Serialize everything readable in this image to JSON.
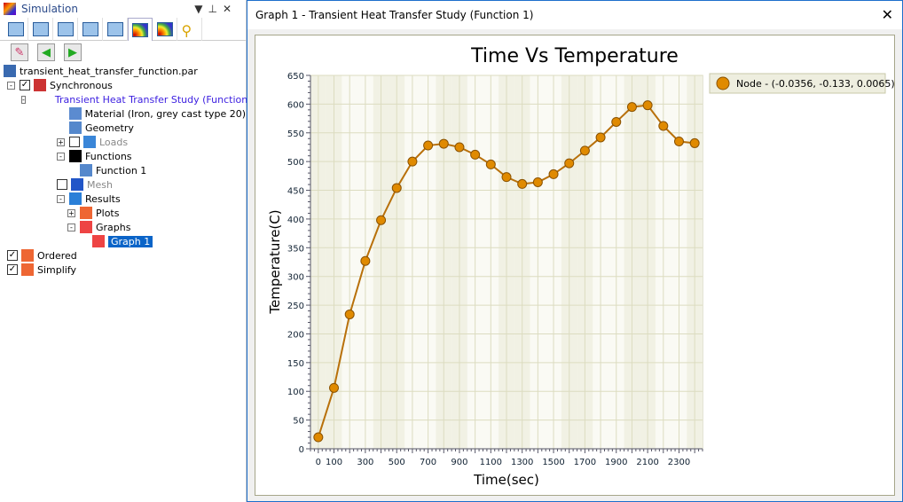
{
  "panel": {
    "title": "Simulation",
    "controls": [
      "▼",
      "⊥",
      "✕"
    ],
    "tabs": [
      "geometry",
      "parts",
      "loads",
      "gauge",
      "playback",
      "results",
      "results-list",
      "key"
    ],
    "tools": [
      "edit",
      "back",
      "forward"
    ]
  },
  "tree": [
    {
      "label": "transient_heat_transfer_function.par",
      "level": 0,
      "icon": "part-file-icon"
    },
    {
      "label": "Synchronous",
      "level": 1,
      "exp": "-",
      "chk": true,
      "icon": "sync-icon"
    },
    {
      "label": "Transient Heat Transfer Study (Function 1)",
      "level": 2,
      "exp": "-",
      "icon": "study-icon",
      "style": "blue"
    },
    {
      "label": "Material (Iron, grey cast type 20)",
      "level": 3,
      "icon": "material-icon"
    },
    {
      "label": "Geometry",
      "level": 3,
      "icon": "geometry-icon"
    },
    {
      "label": "Loads",
      "level": 3,
      "exp": "+",
      "chk": false,
      "icon": "loads-icon",
      "style": "gray"
    },
    {
      "label": "Functions",
      "level": 3,
      "exp": "-",
      "icon": "functions-icon"
    },
    {
      "label": "Function 1",
      "level": 4,
      "icon": "function-icon"
    },
    {
      "label": "Mesh",
      "level": 3,
      "chk": false,
      "icon": "mesh-icon",
      "style": "gray"
    },
    {
      "label": "Results",
      "level": 3,
      "exp": "-",
      "icon": "results-icon"
    },
    {
      "label": "Plots",
      "level": 4,
      "exp": "+",
      "icon": "plots-icon"
    },
    {
      "label": "Graphs",
      "level": 4,
      "exp": "-",
      "icon": "graphs-icon"
    },
    {
      "label": "Graph 1",
      "level": 5,
      "icon": "graph-icon",
      "style": "sel"
    },
    {
      "label": "Ordered",
      "level": 1,
      "chk": true,
      "icon": "ordered-icon"
    },
    {
      "label": "Simplify",
      "level": 1,
      "chk": true,
      "icon": "simplify-icon"
    }
  ],
  "window": {
    "title": "Graph 1 - Transient Heat Transfer Study (Function 1)",
    "close": "✕"
  },
  "chart_data": {
    "type": "line",
    "title": "Time Vs Temperature",
    "xlabel": "Time(sec)",
    "ylabel": "Temperature(C)",
    "xlim": [
      -50,
      2450
    ],
    "ylim": [
      0,
      650
    ],
    "grid": true,
    "legend_position": "right",
    "xticks": [
      0,
      100,
      300,
      500,
      700,
      900,
      1100,
      1300,
      1500,
      1700,
      1900,
      2100,
      2300
    ],
    "yticks": [
      0,
      50,
      100,
      150,
      200,
      250,
      300,
      350,
      400,
      450,
      500,
      550,
      600,
      650
    ],
    "color": "#e08a00",
    "series": [
      {
        "name": "Node - (-0.0356, -0.133, 0.0065)",
        "x": [
          0,
          100,
          200,
          300,
          400,
          500,
          600,
          700,
          800,
          900,
          1000,
          1100,
          1200,
          1300,
          1400,
          1500,
          1600,
          1700,
          1800,
          1900,
          2000,
          2100,
          2200,
          2300,
          2400
        ],
        "y": [
          20,
          106,
          234,
          327,
          398,
          454,
          500,
          528,
          531,
          525,
          512,
          495,
          473,
          461,
          464,
          478,
          497,
          519,
          542,
          569,
          595,
          598,
          562,
          535,
          532
        ]
      }
    ]
  }
}
